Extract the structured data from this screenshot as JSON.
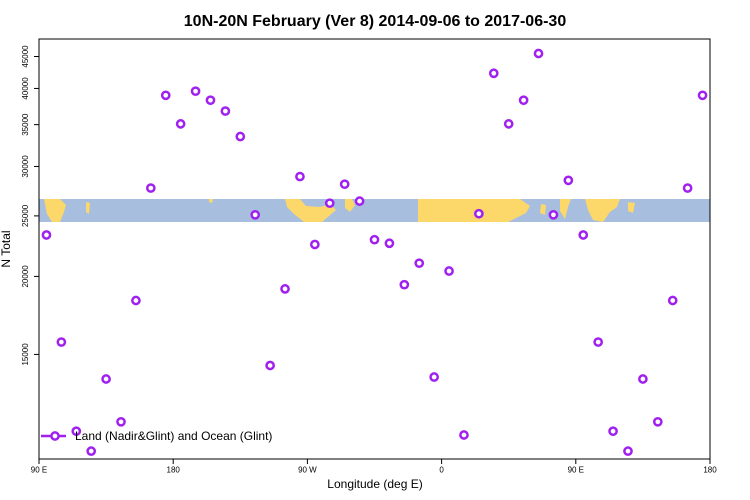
{
  "chart_data": {
    "type": "scatter",
    "title": "10N-20N February (Ver 8)   2014-09-06 to 2017-06-30",
    "xlabel": "Longitude (deg E)",
    "ylabel": "N Total",
    "x_ticks": [
      {
        "value": 90,
        "label": "90 E"
      },
      {
        "value": 180,
        "label": "180"
      },
      {
        "value": 270,
        "label": "90 W"
      },
      {
        "value": 360,
        "label": "0"
      },
      {
        "value": 450,
        "label": "90 E"
      },
      {
        "value": 540,
        "label": "180"
      }
    ],
    "y_ticks": [
      15000,
      20000,
      25000,
      30000,
      35000,
      40000,
      45000
    ],
    "xlim": [
      90,
      540
    ],
    "y_scale": "log",
    "ylim": [
      10200,
      48000
    ],
    "legend": {
      "label": "Land (Nadir&Glint) and Ocean (Glint)",
      "position": "bottom-left"
    },
    "marker_color": "#a020f0",
    "band_colors": {
      "ocean": "#a7bedf",
      "land": "#fcd86b"
    },
    "series": [
      {
        "name": "Land (Nadir&Glint) and Ocean (Glint)",
        "x": [
          95,
          105,
          115,
          125,
          135,
          145,
          155,
          165,
          175,
          185,
          195,
          205,
          215,
          225,
          235,
          245,
          255,
          265,
          275,
          285,
          295,
          305,
          315,
          325,
          335,
          345,
          355,
          365,
          375,
          385,
          395,
          405,
          415,
          425,
          435,
          445,
          455,
          465,
          475,
          485,
          495,
          505,
          515,
          525,
          535
        ],
        "y": [
          23300,
          15700,
          11300,
          10500,
          13700,
          11700,
          18300,
          27700,
          39000,
          35100,
          39600,
          38300,
          36800,
          33500,
          25100,
          14400,
          19100,
          28900,
          22500,
          26200,
          28100,
          26400,
          22900,
          22600,
          19400,
          21000,
          13800,
          20400,
          10000,
          25200,
          42300,
          35100,
          38300,
          45500,
          25100,
          28500,
          23300,
          15700,
          11300,
          10500,
          13700,
          11700,
          18300,
          27700,
          39000
        ]
      }
    ]
  }
}
